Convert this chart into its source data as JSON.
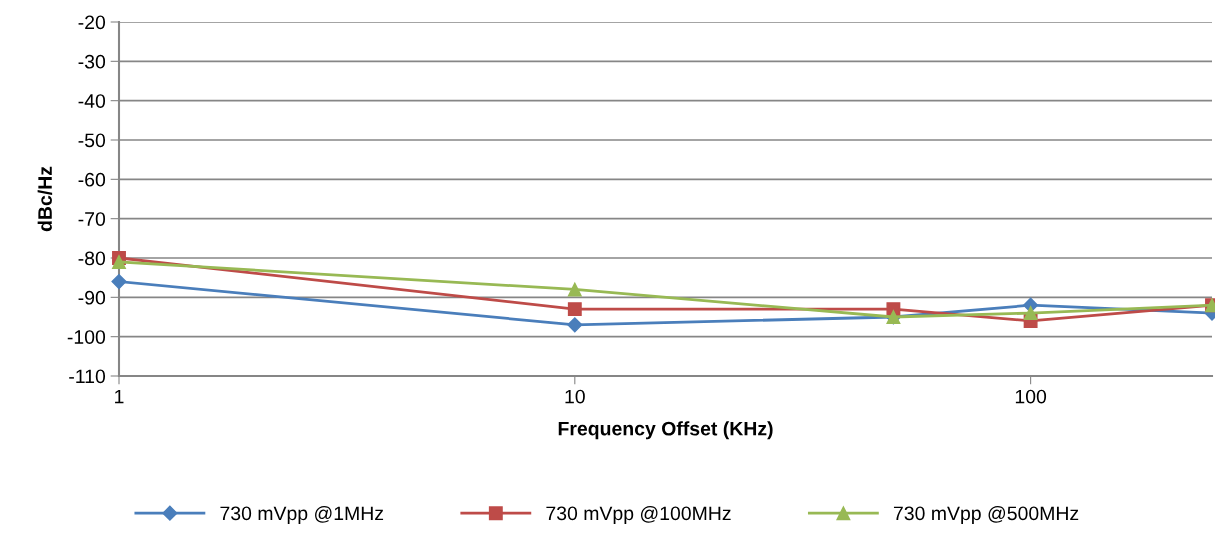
{
  "chart_data": {
    "type": "line",
    "xlabel": "Frequency Offset (KHz)",
    "ylabel": "dBc/Hz",
    "log": "x",
    "x": [
      1,
      10,
      50,
      100,
      250
    ],
    "xlim": [
      1,
      250
    ],
    "xticks": [
      1,
      10,
      100
    ],
    "ylim": [
      -110,
      -20
    ],
    "yticks": [
      -110,
      -100,
      -90,
      -80,
      -70,
      -60,
      -50,
      -40,
      -30,
      -20
    ],
    "grid": "y",
    "legend": "bottom",
    "series": [
      {
        "name": "730 mVpp @1MHz",
        "color": "#4a7ebb",
        "marker": "diamond",
        "values": [
          -86,
          -97,
          -95,
          -92,
          -94
        ]
      },
      {
        "name": "730 mVpp @100MHz",
        "color": "#be4b48",
        "marker": "square",
        "values": [
          -80,
          -93,
          -93,
          -96,
          -92
        ]
      },
      {
        "name": "730 mVpp @500MHz",
        "color": "#98b954",
        "marker": "triangle",
        "values": [
          -81,
          -88,
          -95,
          -94,
          -92
        ]
      }
    ]
  }
}
